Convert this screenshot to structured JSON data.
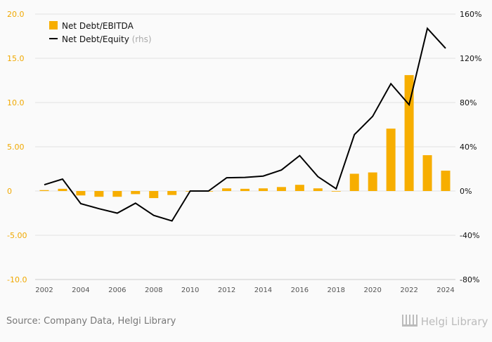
{
  "chart_data": {
    "type": "bar",
    "categories": [
      "2002",
      "2003",
      "2004",
      "2005",
      "2006",
      "2007",
      "2008",
      "2009",
      "2010",
      "2011",
      "2012",
      "2013",
      "2014",
      "2015",
      "2016",
      "2017",
      "2018",
      "2019",
      "2020",
      "2021",
      "2022",
      "2023",
      "2024"
    ],
    "series": [
      {
        "name": "Net Debt/EBITDA",
        "axis": "left",
        "type": "bar",
        "values": [
          0.1,
          0.25,
          -0.5,
          -0.65,
          -0.65,
          -0.35,
          -0.8,
          -0.45,
          0,
          0,
          0.3,
          0.25,
          0.3,
          0.45,
          0.7,
          0.3,
          0,
          1.95,
          2.1,
          7.05,
          13.1,
          4.05,
          2.3
        ]
      },
      {
        "name": "Net Debt/Equity",
        "suffix": " (rhs)",
        "axis": "right",
        "type": "line",
        "values": [
          5.7,
          10.8,
          -11.4,
          -16,
          -20,
          -11,
          -22,
          -27,
          0,
          0,
          12,
          12.3,
          13.5,
          19,
          32,
          13,
          2,
          51,
          67.5,
          97,
          78,
          147,
          129
        ]
      }
    ],
    "left_ticks": [
      "20.0",
      "15.0",
      "10.0",
      "5.00",
      "0",
      "-5.00",
      "-10.0"
    ],
    "right_ticks": [
      "160%",
      "120%",
      "80%",
      "40%",
      "0%",
      "-40%",
      "-80%"
    ],
    "x_ticks": [
      "2002",
      "2004",
      "2006",
      "2008",
      "2010",
      "2012",
      "2014",
      "2016",
      "2018",
      "2020",
      "2022",
      "2024"
    ],
    "ylim_left": [
      -10,
      20
    ],
    "ylim_right": [
      -80,
      160
    ],
    "legend_position": "top-left",
    "colors": {
      "bar": "#f7ae00",
      "line": "#000000",
      "left_axis": "#f0a800"
    }
  },
  "footer": {
    "source": "Source: Company Data, Helgi Library",
    "logo": "Helgi Library"
  }
}
